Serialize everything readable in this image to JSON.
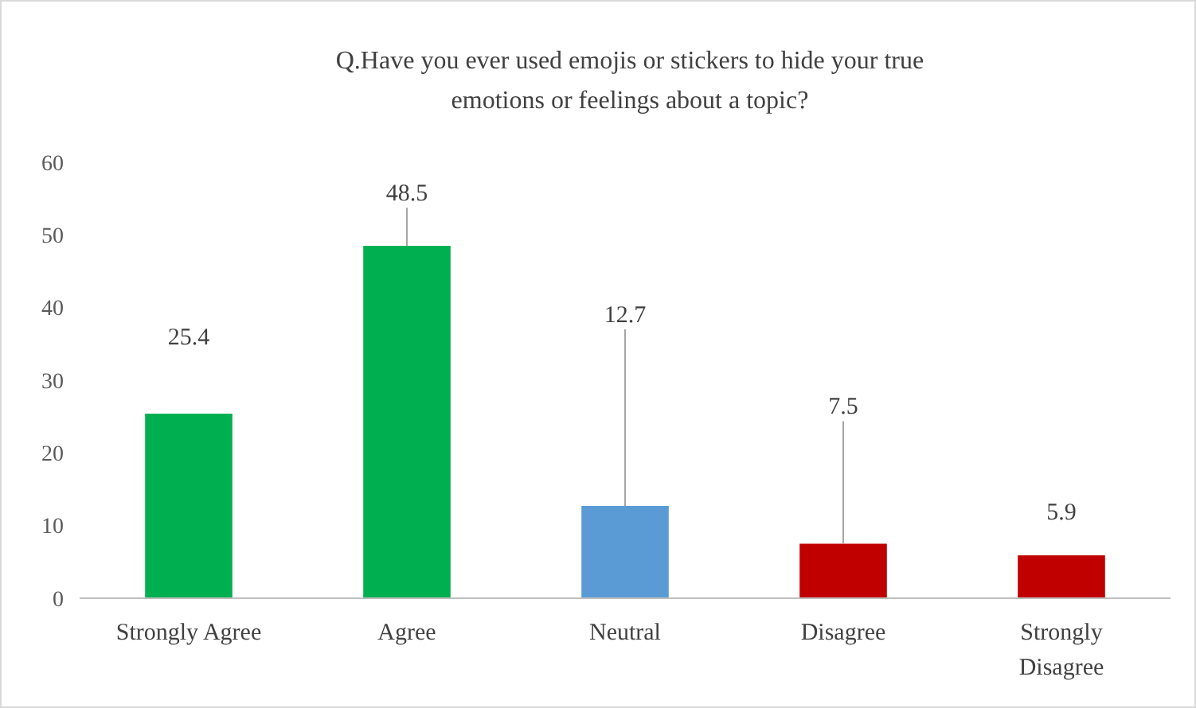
{
  "chart_data": {
    "type": "bar",
    "title": "Q.Have you ever used emojis or stickers to hide your true emotions or feelings about a topic?",
    "categories": [
      "Strongly Agree",
      "Agree",
      "Neutral",
      "Disagree",
      "Strongly Disagree"
    ],
    "values": [
      25.4,
      48.5,
      12.7,
      7.5,
      5.9
    ],
    "colors": [
      "#00b050",
      "#00b050",
      "#5b9bd5",
      "#c00000",
      "#c00000"
    ],
    "value_labels": [
      "25.4",
      "48.5",
      null,
      null,
      "5.9"
    ],
    "annotations": [
      {
        "text": "12.7",
        "x": "Neutral",
        "y": 12.7
      },
      {
        "text": "7.5",
        "x": "Disagree",
        "y": 7.5
      }
    ],
    "ylim": [
      0,
      60
    ],
    "yticks": [
      0,
      10,
      20,
      30,
      40,
      50,
      60
    ],
    "grid": false
  }
}
